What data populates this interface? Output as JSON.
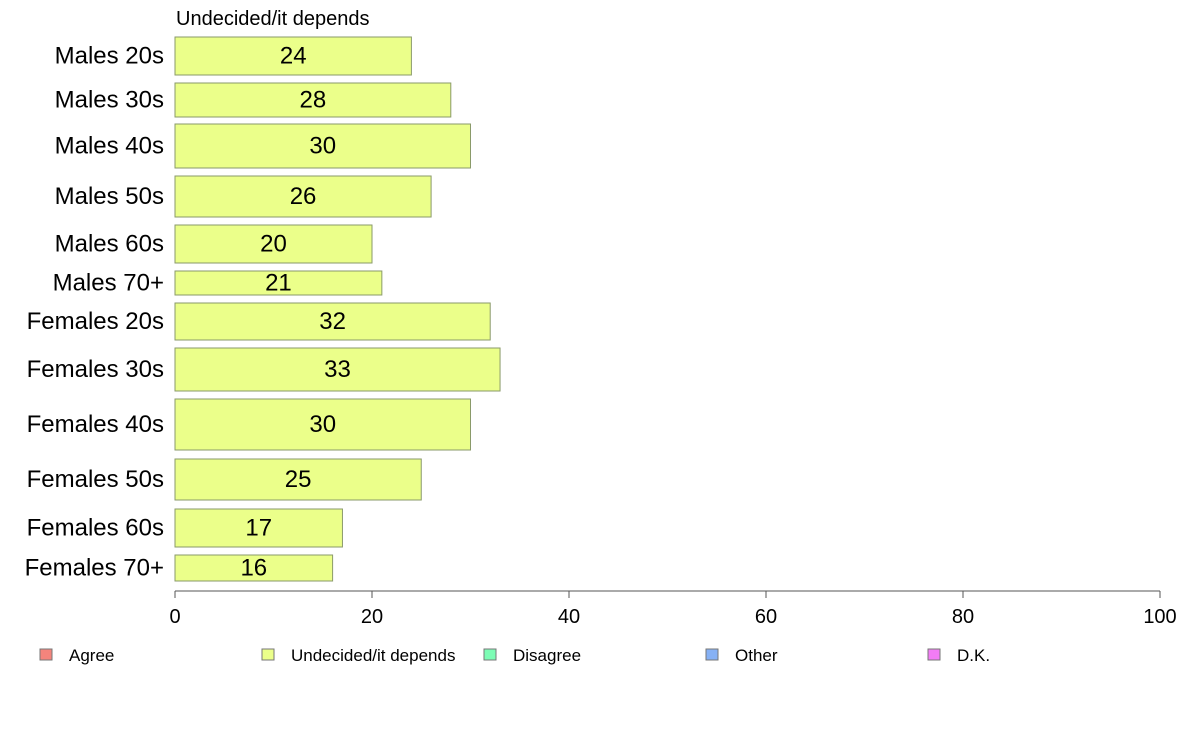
{
  "chart_data": {
    "type": "bar",
    "orientation": "horizontal",
    "title": "Undecided/it depends",
    "categories": [
      "Males 20s",
      "Males 30s",
      "Males 40s",
      "Males 50s",
      "Males 60s",
      "Males 70+",
      "Females 20s",
      "Females 30s",
      "Females 40s",
      "Females 50s",
      "Females 60s",
      "Females 70+"
    ],
    "values": [
      24,
      28,
      30,
      26,
      20,
      21,
      32,
      33,
      30,
      25,
      17,
      16
    ],
    "xlim": [
      0,
      100
    ],
    "xticks": [
      0,
      20,
      40,
      60,
      80,
      100
    ],
    "grid": false,
    "bar_color": "#ebff8a",
    "legend_position": "bottom",
    "legend": [
      {
        "label": "Agree",
        "color": "#f4847c"
      },
      {
        "label": "Undecided/it depends",
        "color": "#ebff8a"
      },
      {
        "label": "Disagree",
        "color": "#7dfcb5"
      },
      {
        "label": "Other",
        "color": "#86b1f5"
      },
      {
        "label": "D.K.",
        "color": "#f37cf5"
      }
    ]
  }
}
